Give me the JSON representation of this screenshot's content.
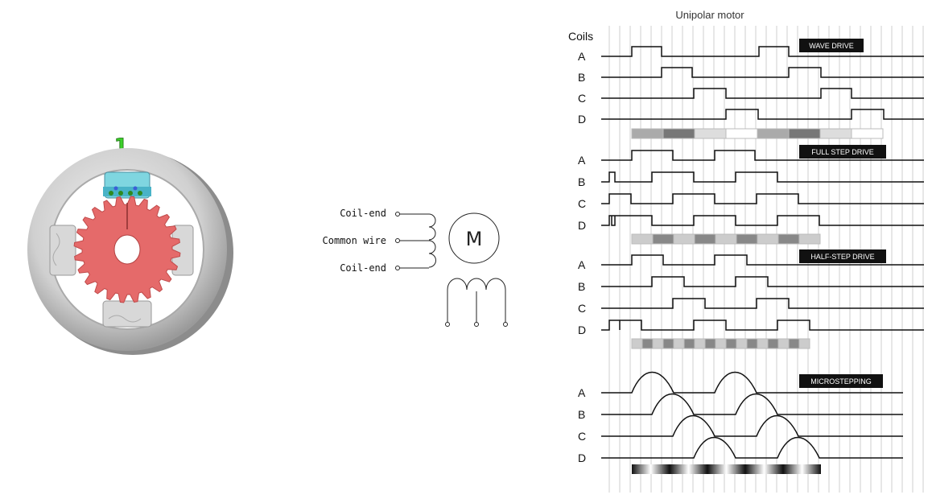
{
  "motor_animation": {
    "step_number": "1"
  },
  "wiring": {
    "labels": [
      "Coil-end",
      "Common wire",
      "Coil-end"
    ],
    "motor_symbol": "M"
  },
  "timing": {
    "title": "Unipolar motor",
    "coils_header": "Coils",
    "sections": [
      {
        "name": "WAVE DRIVE",
        "coils": [
          "A",
          "B",
          "C",
          "D"
        ]
      },
      {
        "name": "FULL STEP DRIVE",
        "coils": [
          "A",
          "B",
          "C",
          "D"
        ]
      },
      {
        "name": "HALF-STEP DRIVE",
        "coils": [
          "A",
          "B",
          "C",
          "D"
        ]
      },
      {
        "name": "MICROSTEPPING",
        "coils": [
          "A",
          "B",
          "C",
          "D"
        ]
      }
    ]
  }
}
